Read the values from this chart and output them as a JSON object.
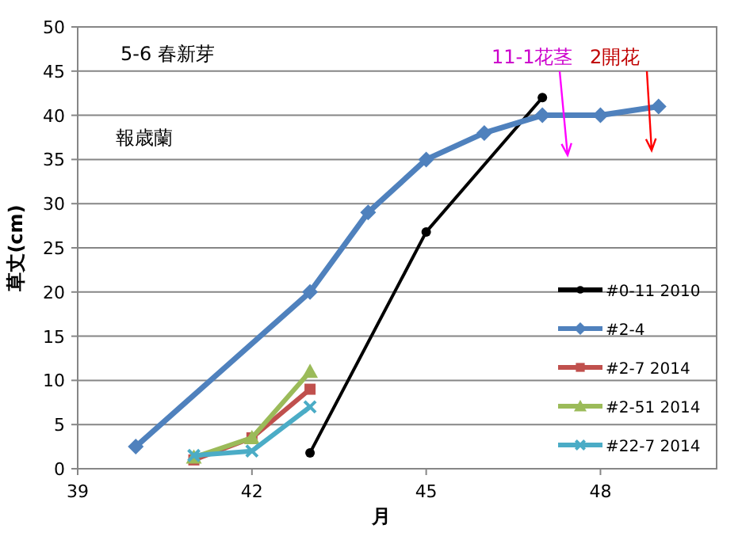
{
  "chart_data": {
    "type": "line",
    "xlabel": "月",
    "ylabel": "草丈(cm)",
    "xlim": [
      39,
      50
    ],
    "xticks": [
      39,
      42,
      45,
      48
    ],
    "ylim": [
      0,
      50
    ],
    "yticks": [
      0,
      5,
      10,
      15,
      20,
      25,
      30,
      35,
      40,
      45,
      50
    ],
    "grid": "y",
    "legend": "bottom right",
    "annotations": [
      "5-6 春新芽",
      "報歳蘭",
      "11-1花茎",
      "2開花"
    ],
    "series": [
      {
        "name": "#0-11 2010",
        "color": "#000000",
        "marker": "circle",
        "x": [
          43,
          45,
          47
        ],
        "values": [
          1.8,
          26.8,
          42
        ]
      },
      {
        "name": "#2-4",
        "color": "#4f81bd",
        "marker": "diamond",
        "x": [
          40,
          43,
          44,
          45,
          46,
          47,
          48,
          49
        ],
        "values": [
          2.5,
          20,
          29,
          35,
          38,
          40,
          40,
          41
        ]
      },
      {
        "name": "#2-7 2014",
        "color": "#c0504d",
        "marker": "square",
        "x": [
          41,
          42,
          43
        ],
        "values": [
          1,
          3.5,
          9
        ]
      },
      {
        "name": "#2-51 2014",
        "color": "#9bbb59",
        "marker": "triangle",
        "x": [
          41,
          42,
          43
        ],
        "values": [
          1.3,
          3.5,
          11
        ]
      },
      {
        "name": "#22-7 2014",
        "color": "#4bacc6",
        "marker": "cross",
        "x": [
          41,
          42,
          43
        ],
        "values": [
          1.5,
          2,
          7
        ]
      }
    ]
  }
}
